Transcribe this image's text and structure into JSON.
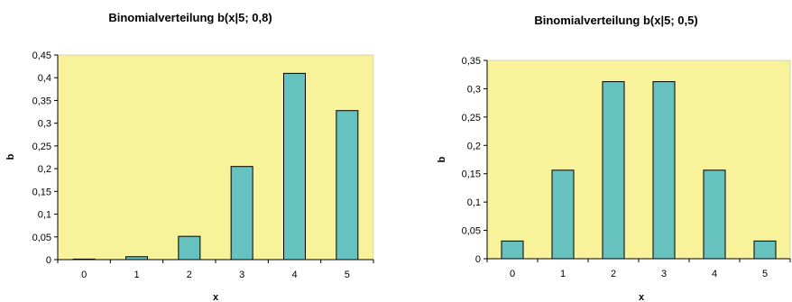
{
  "colors": {
    "plot_background": "#f8f39a",
    "bar_fill": "#66c2bf",
    "bar_stroke": "#000000",
    "axis": "#000000"
  },
  "chart_data": [
    {
      "type": "bar",
      "title": "Binomialverteilung b(x|5; 0,8)",
      "xlabel": "x",
      "ylabel": "b",
      "categories": [
        "0",
        "1",
        "2",
        "3",
        "4",
        "5"
      ],
      "values": [
        0.00032,
        0.0064,
        0.0512,
        0.2048,
        0.4096,
        0.32768
      ],
      "ylim": [
        0,
        0.45
      ],
      "yticks": [
        "0",
        "0,05",
        "0,1",
        "0,15",
        "0,2",
        "0,25",
        "0,3",
        "0,35",
        "0,4",
        "0,45"
      ],
      "grid": false,
      "legend": "none"
    },
    {
      "type": "bar",
      "title": "Binomialverteilung b(x|5; 0,5)",
      "xlabel": "x",
      "ylabel": "b",
      "categories": [
        "0",
        "1",
        "2",
        "3",
        "4",
        "5"
      ],
      "values": [
        0.03125,
        0.15625,
        0.3125,
        0.3125,
        0.15625,
        0.03125
      ],
      "ylim": [
        0,
        0.35
      ],
      "yticks": [
        "0",
        "0,05",
        "0,1",
        "0,15",
        "0,2",
        "0,25",
        "0,3",
        "0,35"
      ],
      "grid": false,
      "legend": "none"
    }
  ]
}
